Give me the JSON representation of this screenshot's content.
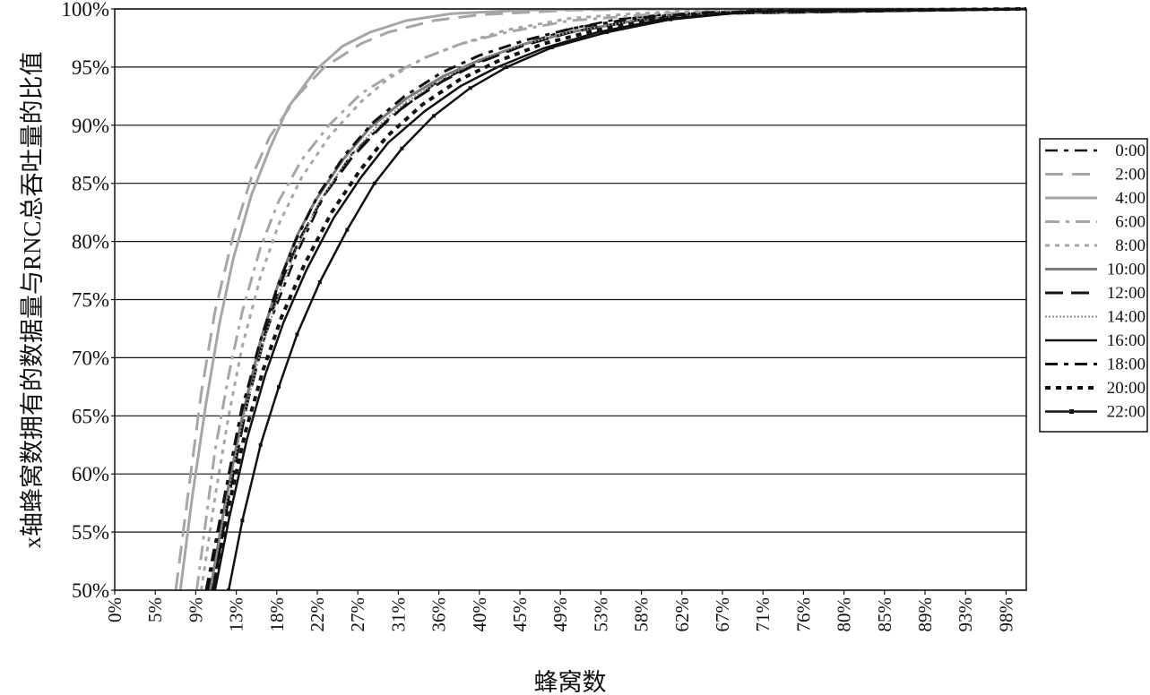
{
  "chart_data": {
    "type": "line",
    "xlabel": "蜂窝数",
    "ylabel": "x轴蜂窝数拥有的数据量与RNC总吞吐量的比值",
    "ylim": [
      50,
      100
    ],
    "xlim": [
      0,
      100
    ],
    "y_ticks": [
      "50%",
      "55%",
      "60%",
      "65%",
      "70%",
      "75%",
      "80%",
      "85%",
      "90%",
      "95%",
      "100%"
    ],
    "x_ticks": [
      "0%",
      "5%",
      "9%",
      "13%",
      "18%",
      "22%",
      "27%",
      "31%",
      "36%",
      "40%",
      "45%",
      "49%",
      "53%",
      "58%",
      "62%",
      "67%",
      "71%",
      "76%",
      "80%",
      "85%",
      "89%",
      "93%",
      "98%"
    ],
    "grid": "horizontal",
    "legend_position": "right",
    "series": [
      {
        "name": "0:00",
        "color": "#111111",
        "dash": "14,7,5,7",
        "width": 2.5,
        "x": [
          10,
          12,
          14,
          17,
          20,
          23,
          26,
          30,
          35,
          40,
          45,
          50,
          55,
          60,
          70,
          100
        ],
        "y": [
          50,
          58,
          66,
          73,
          79,
          84,
          87.5,
          90.5,
          93.5,
          95.5,
          97,
          98.3,
          99.1,
          99.5,
          99.9,
          100
        ]
      },
      {
        "name": "2:00",
        "color": "#a6a6a6",
        "dash": "20,10",
        "width": 3,
        "x": [
          6.7,
          8,
          9.5,
          11,
          13,
          15,
          17,
          20,
          23,
          27,
          30,
          35,
          40,
          50,
          60,
          100
        ],
        "y": [
          50,
          58,
          67,
          74,
          80.5,
          85.5,
          89,
          92.5,
          95,
          97,
          98,
          99,
          99.5,
          99.9,
          100,
          100
        ]
      },
      {
        "name": "4:00",
        "color": "#a6a6a6",
        "dash": "",
        "width": 3,
        "x": [
          7.2,
          8.5,
          10,
          11.5,
          13,
          15,
          17,
          19,
          22,
          25,
          28,
          32,
          37,
          45,
          55,
          100
        ],
        "y": [
          50,
          58,
          66,
          73,
          78.5,
          84,
          88,
          91.5,
          94.7,
          96.8,
          98,
          99,
          99.6,
          99.9,
          100,
          100
        ]
      },
      {
        "name": "6:00",
        "color": "#a6a6a6",
        "dash": "16,7,4,7",
        "width": 3,
        "x": [
          9,
          10,
          11,
          12.5,
          14,
          16,
          18,
          20.5,
          23.5,
          27,
          30,
          34,
          38,
          43,
          50,
          60,
          70,
          100
        ],
        "y": [
          50,
          56,
          62,
          68.5,
          74,
          79.5,
          83.5,
          87,
          90,
          92.7,
          94.2,
          95.8,
          97,
          98,
          99,
          99.6,
          99.9,
          100
        ]
      },
      {
        "name": "8:00",
        "color": "#a6a6a6",
        "dash": "5,6",
        "width": 3,
        "x": [
          9.5,
          11,
          12.5,
          14,
          16,
          18,
          20.5,
          23.5,
          27,
          30,
          34,
          38,
          43,
          50,
          57,
          65,
          100
        ],
        "y": [
          50,
          58,
          65,
          71,
          77,
          81.5,
          85.5,
          89,
          92,
          94,
          95.8,
          97,
          98.2,
          99.2,
          99.6,
          99.9,
          100
        ]
      },
      {
        "name": "10:00",
        "color": "#7a7a7a",
        "dash": "",
        "width": 3,
        "x": [
          10.5,
          12,
          14,
          16,
          18,
          20,
          22,
          25,
          28,
          32,
          36,
          40,
          45,
          50,
          57,
          65,
          100
        ],
        "y": [
          50,
          57,
          65,
          71.5,
          76.5,
          80.5,
          83.5,
          87,
          89.8,
          92.3,
          94.2,
          95.6,
          97,
          98,
          99,
          99.6,
          100
        ]
      },
      {
        "name": "12:00",
        "color": "#111111",
        "dash": "20,9",
        "width": 3,
        "x": [
          10.8,
          12.5,
          14.5,
          16.5,
          18.5,
          20.5,
          23,
          26,
          29,
          32,
          36,
          40,
          45,
          50,
          57,
          65,
          100
        ],
        "y": [
          50,
          58,
          66,
          72,
          77,
          80.5,
          84,
          87.2,
          89.7,
          91.8,
          93.8,
          95.4,
          96.9,
          98,
          99,
          99.6,
          100
        ]
      },
      {
        "name": "14:00",
        "color": "#8c8c8c",
        "dash": "2,2",
        "width": 2,
        "x": [
          10.5,
          12,
          14,
          16,
          18,
          20,
          22.5,
          25.5,
          28.5,
          32,
          36,
          40,
          45,
          50,
          57,
          65,
          100
        ],
        "y": [
          50,
          56.5,
          64.5,
          70.5,
          75.5,
          79.5,
          83.5,
          87,
          89.7,
          92,
          94,
          95.6,
          97,
          98,
          99,
          99.6,
          100
        ]
      },
      {
        "name": "16:00",
        "color": "#111111",
        "dash": "",
        "width": 2.5,
        "x": [
          11,
          12.5,
          14.5,
          16.5,
          18.5,
          21,
          24,
          27,
          30,
          34,
          38,
          42,
          47,
          53,
          60,
          70,
          100
        ],
        "y": [
          50,
          56,
          63,
          68.5,
          73,
          77.5,
          82,
          85.5,
          88.5,
          91.2,
          93.4,
          95,
          96.6,
          98,
          99.1,
          99.8,
          100
        ]
      },
      {
        "name": "18:00",
        "color": "#111111",
        "dash": "14,7,5,7",
        "width": 3,
        "x": [
          10.2,
          11.8,
          13.8,
          15.8,
          17.8,
          19.8,
          22.3,
          25.3,
          28.3,
          31.8,
          35.8,
          40,
          45,
          50,
          57,
          65,
          100
        ],
        "y": [
          50,
          57,
          65,
          71,
          76,
          80,
          84,
          87.5,
          90.2,
          92.5,
          94.5,
          96,
          97.3,
          98.3,
          99.2,
          99.7,
          100
        ]
      },
      {
        "name": "20:00",
        "color": "#111111",
        "dash": "6,6",
        "width": 4,
        "x": [
          10.8,
          12.3,
          14.3,
          16.3,
          18.3,
          20.8,
          23.8,
          26.8,
          29.8,
          33.8,
          37.8,
          42,
          47,
          53,
          60,
          70,
          100
        ],
        "y": [
          50,
          56.5,
          63.5,
          69,
          73.5,
          78,
          82.5,
          86,
          89,
          91.8,
          93.9,
          95.5,
          97,
          98.2,
          99.2,
          99.8,
          100
        ]
      },
      {
        "name": "22:00",
        "color": "#111111",
        "dash": "",
        "width": 2.5,
        "marker": true,
        "x": [
          12.5,
          14,
          16,
          18,
          20,
          22.5,
          25.5,
          28.5,
          31.5,
          35,
          39,
          43,
          48,
          54,
          61,
          70,
          100
        ],
        "y": [
          50,
          56,
          62.5,
          67.5,
          72,
          76.5,
          81,
          85,
          88,
          90.8,
          93.2,
          95,
          96.7,
          98,
          99.1,
          99.8,
          100
        ]
      }
    ]
  }
}
